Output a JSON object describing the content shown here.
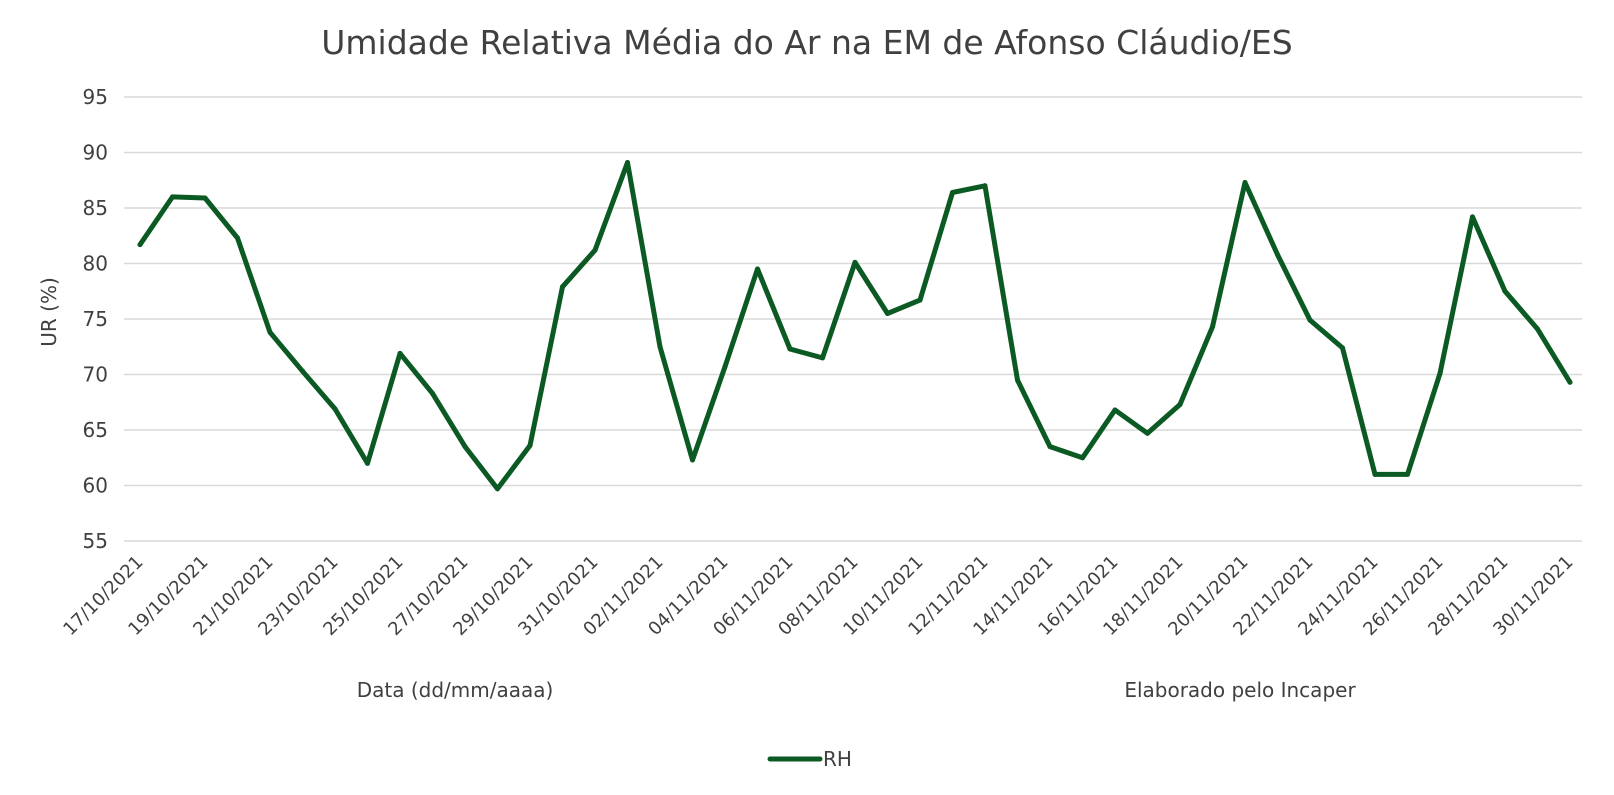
{
  "chart_data": {
    "type": "line",
    "title": "Umidade Relativa Média do Ar na EM de Afonso Cláudio/ES",
    "xlabel": "Data (dd/mm/aaaa)",
    "ylabel": "UR (%)",
    "note": "Elaborado pelo Incaper",
    "ylim": [
      55,
      95
    ],
    "yticks": [
      95,
      90,
      85,
      80,
      75,
      70,
      65,
      60,
      55
    ],
    "grid": true,
    "legend_position": "bottom",
    "line_color": "#0b5a23",
    "x": [
      "17/10/2021",
      "18/10/2021",
      "19/10/2021",
      "20/10/2021",
      "21/10/2021",
      "22/10/2021",
      "23/10/2021",
      "24/10/2021",
      "25/10/2021",
      "26/10/2021",
      "27/10/2021",
      "28/10/2021",
      "29/10/2021",
      "30/10/2021",
      "31/10/2021",
      "01/11/2021",
      "02/11/2021",
      "03/11/2021",
      "04/11/2021",
      "05/11/2021",
      "06/11/2021",
      "07/11/2021",
      "08/11/2021",
      "09/11/2021",
      "10/11/2021",
      "11/11/2021",
      "12/11/2021",
      "13/11/2021",
      "14/11/2021",
      "15/11/2021",
      "16/11/2021",
      "17/11/2021",
      "18/11/2021",
      "19/11/2021",
      "20/11/2021",
      "21/11/2021",
      "22/11/2021",
      "23/11/2021",
      "24/11/2021",
      "25/11/2021",
      "26/11/2021",
      "27/11/2021",
      "28/11/2021",
      "29/11/2021",
      "30/11/2021"
    ],
    "xtick_labels": [
      "17/10/2021",
      "19/10/2021",
      "21/10/2021",
      "23/10/2021",
      "25/10/2021",
      "27/10/2021",
      "29/10/2021",
      "31/10/2021",
      "02/11/2021",
      "04/11/2021",
      "06/11/2021",
      "08/11/2021",
      "10/11/2021",
      "12/11/2021",
      "14/11/2021",
      "16/11/2021",
      "18/11/2021",
      "20/11/2021",
      "22/11/2021",
      "24/11/2021",
      "26/11/2021",
      "28/11/2021",
      "30/11/2021"
    ],
    "series": [
      {
        "name": "RH",
        "values": [
          81.7,
          86.0,
          85.9,
          82.3,
          73.8,
          70.3,
          66.9,
          62.0,
          71.9,
          68.3,
          63.5,
          59.7,
          63.6,
          77.9,
          81.2,
          89.1,
          72.5,
          62.3,
          70.7,
          79.5,
          72.3,
          71.5,
          80.1,
          75.5,
          76.7,
          86.4,
          87.0,
          69.5,
          63.5,
          62.5,
          66.8,
          64.7,
          67.3,
          74.3,
          87.3,
          80.8,
          74.9,
          72.4,
          61.0,
          61.0,
          70.1,
          84.2,
          77.5,
          74.1,
          69.3
        ]
      }
    ]
  }
}
